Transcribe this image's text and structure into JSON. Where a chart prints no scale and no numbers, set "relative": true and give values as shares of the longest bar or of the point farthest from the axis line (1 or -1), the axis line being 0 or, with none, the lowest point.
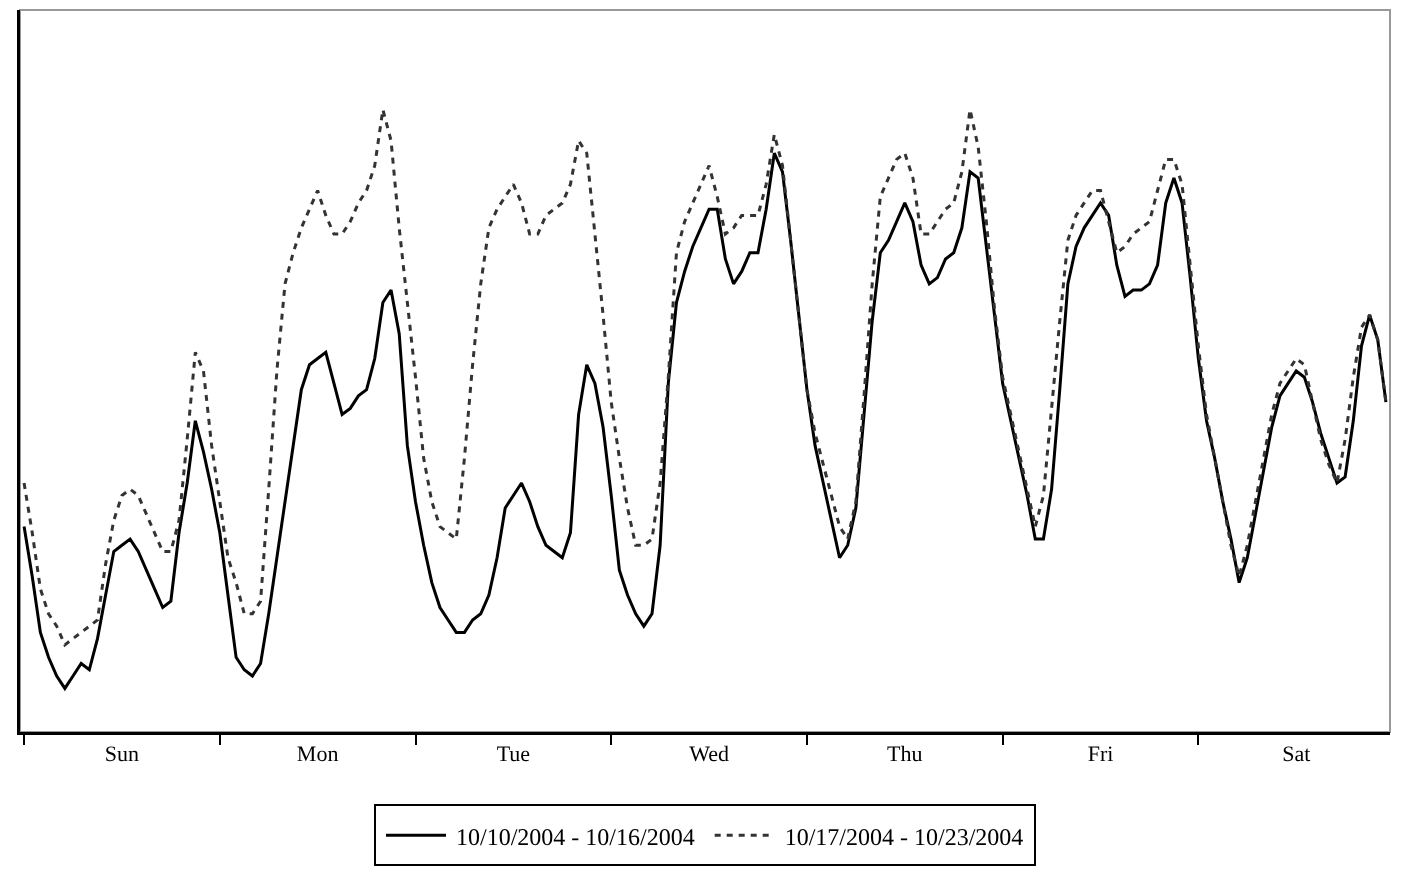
{
  "chart_data": {
    "type": "line",
    "relative": true,
    "legend": "bottom",
    "grid": false,
    "marker": "none",
    "categories": [
      null,
      null,
      null,
      null,
      null,
      null,
      null,
      null,
      null,
      null,
      null,
      null,
      "Sun",
      null,
      null,
      null,
      null,
      null,
      null,
      null,
      null,
      null,
      null,
      null,
      null,
      null,
      null,
      null,
      null,
      null,
      null,
      null,
      null,
      null,
      null,
      null,
      "Mon",
      null,
      null,
      null,
      null,
      null,
      null,
      null,
      null,
      null,
      null,
      null,
      null,
      null,
      null,
      null,
      null,
      null,
      null,
      null,
      null,
      null,
      null,
      null,
      "Tue",
      null,
      null,
      null,
      null,
      null,
      null,
      null,
      null,
      null,
      null,
      null,
      null,
      null,
      null,
      null,
      null,
      null,
      null,
      null,
      null,
      null,
      null,
      null,
      "Wed",
      null,
      null,
      null,
      null,
      null,
      null,
      null,
      null,
      null,
      null,
      null,
      null,
      null,
      null,
      null,
      null,
      null,
      null,
      null,
      null,
      null,
      null,
      null,
      "Thu",
      null,
      null,
      null,
      null,
      null,
      null,
      null,
      null,
      null,
      null,
      null,
      null,
      null,
      null,
      null,
      null,
      null,
      null,
      null,
      null,
      null,
      null,
      null,
      "Fri",
      null,
      null,
      null,
      null,
      null,
      null,
      null,
      null,
      null,
      null,
      null,
      null,
      null,
      null,
      null,
      null,
      null,
      null,
      null,
      null,
      null,
      null,
      null,
      "Sat",
      null,
      null,
      null,
      null,
      null,
      null,
      null,
      null,
      null,
      null,
      null
    ],
    "series": [
      {
        "name": "10/10/2004 - 10/16/2004",
        "color": "#000000",
        "line_style": "solid",
        "values": [
          0.33,
          0.25,
          0.16,
          0.12,
          0.09,
          0.07,
          0.09,
          0.11,
          0.1,
          0.15,
          0.22,
          0.29,
          0.3,
          0.31,
          0.29,
          0.26,
          0.23,
          0.2,
          0.21,
          0.32,
          0.4,
          0.5,
          0.45,
          0.39,
          0.32,
          0.22,
          0.12,
          0.1,
          0.09,
          0.11,
          0.19,
          0.28,
          0.37,
          0.46,
          0.55,
          0.59,
          0.6,
          0.61,
          0.56,
          0.51,
          0.52,
          0.54,
          0.55,
          0.6,
          0.69,
          0.71,
          0.64,
          0.46,
          0.37,
          0.3,
          0.24,
          0.2,
          0.18,
          0.16,
          0.16,
          0.18,
          0.19,
          0.22,
          0.28,
          0.36,
          0.38,
          0.4,
          0.37,
          0.33,
          0.3,
          0.29,
          0.28,
          0.32,
          0.51,
          0.59,
          0.56,
          0.49,
          0.38,
          0.26,
          0.22,
          0.19,
          0.17,
          0.19,
          0.3,
          0.56,
          0.69,
          0.74,
          0.78,
          0.81,
          0.84,
          0.84,
          0.76,
          0.72,
          0.74,
          0.77,
          0.77,
          0.84,
          0.93,
          0.9,
          0.79,
          0.67,
          0.55,
          0.46,
          0.4,
          0.34,
          0.28,
          0.3,
          0.36,
          0.51,
          0.66,
          0.77,
          0.79,
          0.82,
          0.85,
          0.82,
          0.75,
          0.72,
          0.73,
          0.76,
          0.77,
          0.81,
          0.9,
          0.89,
          0.78,
          0.67,
          0.56,
          0.5,
          0.44,
          0.38,
          0.31,
          0.31,
          0.39,
          0.55,
          0.72,
          0.78,
          0.81,
          0.83,
          0.85,
          0.83,
          0.75,
          0.7,
          0.71,
          0.71,
          0.72,
          0.75,
          0.85,
          0.89,
          0.85,
          0.73,
          0.6,
          0.5,
          0.44,
          0.37,
          0.31,
          0.24,
          0.28,
          0.35,
          0.42,
          0.49,
          0.54,
          0.56,
          0.58,
          0.57,
          0.53,
          0.48,
          0.44,
          0.4,
          0.41,
          0.5,
          0.62,
          0.67,
          0.63,
          0.53
        ]
      },
      {
        "name": "10/17/2004 - 10/23/2004",
        "color": "#333333",
        "line_style": "dotted",
        "values": [
          0.4,
          0.32,
          0.23,
          0.19,
          0.17,
          0.14,
          0.15,
          0.16,
          0.17,
          0.18,
          0.27,
          0.34,
          0.38,
          0.39,
          0.38,
          0.35,
          0.32,
          0.29,
          0.29,
          0.34,
          0.47,
          0.61,
          0.58,
          0.46,
          0.37,
          0.28,
          0.24,
          0.19,
          0.19,
          0.21,
          0.39,
          0.58,
          0.72,
          0.77,
          0.81,
          0.84,
          0.87,
          0.83,
          0.8,
          0.8,
          0.82,
          0.85,
          0.87,
          0.91,
          1.0,
          0.95,
          0.81,
          0.69,
          0.57,
          0.44,
          0.37,
          0.33,
          0.32,
          0.31,
          0.44,
          0.59,
          0.72,
          0.81,
          0.84,
          0.86,
          0.88,
          0.85,
          0.8,
          0.8,
          0.83,
          0.84,
          0.85,
          0.88,
          0.95,
          0.93,
          0.8,
          0.67,
          0.53,
          0.44,
          0.36,
          0.3,
          0.3,
          0.31,
          0.4,
          0.57,
          0.77,
          0.82,
          0.85,
          0.88,
          0.91,
          0.86,
          0.8,
          0.81,
          0.83,
          0.83,
          0.83,
          0.88,
          0.96,
          0.91,
          0.79,
          0.67,
          0.55,
          0.48,
          0.43,
          0.38,
          0.33,
          0.31,
          0.37,
          0.54,
          0.72,
          0.86,
          0.89,
          0.92,
          0.93,
          0.89,
          0.8,
          0.8,
          0.82,
          0.84,
          0.85,
          0.9,
          1.0,
          0.94,
          0.82,
          0.68,
          0.57,
          0.51,
          0.45,
          0.39,
          0.33,
          0.38,
          0.52,
          0.66,
          0.79,
          0.83,
          0.85,
          0.87,
          0.87,
          0.82,
          0.77,
          0.78,
          0.8,
          0.81,
          0.82,
          0.87,
          0.92,
          0.92,
          0.88,
          0.75,
          0.62,
          0.51,
          0.44,
          0.37,
          0.3,
          0.25,
          0.3,
          0.37,
          0.44,
          0.51,
          0.56,
          0.58,
          0.6,
          0.59,
          0.53,
          0.47,
          0.43,
          0.4,
          0.47,
          0.57,
          0.65,
          0.67,
          0.63,
          0.53
        ]
      }
    ]
  }
}
